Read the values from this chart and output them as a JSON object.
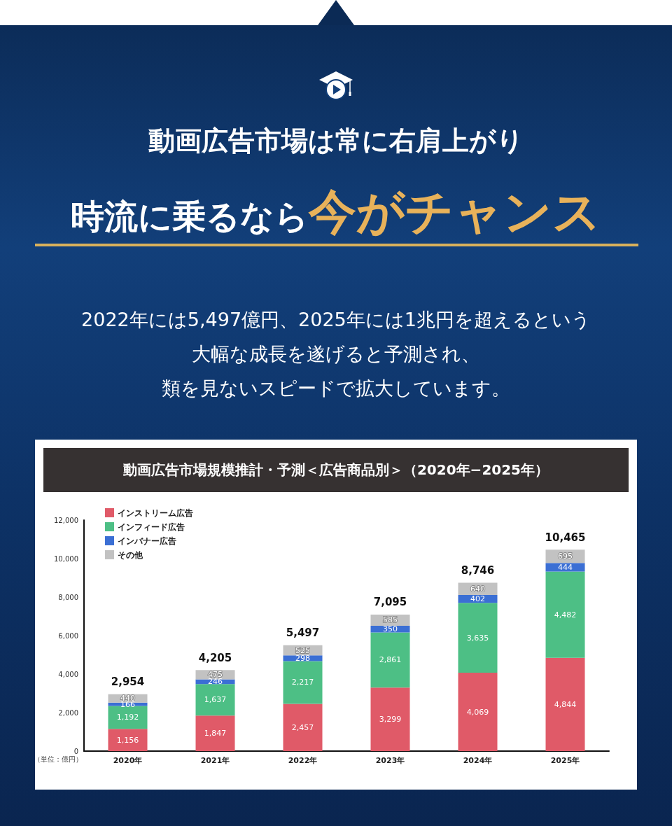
{
  "chart_data": {
    "type": "bar",
    "stacked": true,
    "title": "動画広告市場規模推計・予測＜広告商品別＞（2020年−2025年）",
    "annotations": [
      "動画広告市場は常に右肩上がり",
      "時流に乗るなら",
      "今がチャンス",
      "2022年には5,497億円、2025年には1兆円を超えるという",
      "大幅な成長を遂げると予測され、",
      "類を見ないスピードで拡大しています。"
    ],
    "ylabel": "（単位：億円）",
    "categories": [
      "2020年",
      "2021年",
      "2022年",
      "2023年",
      "2024年",
      "2025年"
    ],
    "series": [
      {
        "name": "インストリーム広告",
        "color": "#e05a68",
        "values": [
          1156,
          1847,
          2457,
          3299,
          4069,
          4844
        ],
        "value_labels": [
          "1,156",
          "1,847",
          "2,457",
          "3,299",
          "4,069",
          "4,844"
        ]
      },
      {
        "name": "インフィード広告",
        "color": "#4dbf85",
        "values": [
          1192,
          1637,
          2217,
          2861,
          3635,
          4482
        ],
        "value_labels": [
          "1,192",
          "1,637",
          "2,217",
          "2,861",
          "3,635",
          "4,482"
        ]
      },
      {
        "name": "インバナー広告",
        "color": "#3b6fd4",
        "values": [
          166,
          246,
          298,
          350,
          402,
          444
        ],
        "value_labels": [
          "166",
          "246",
          "298",
          "350",
          "402",
          "444"
        ]
      },
      {
        "name": "その他",
        "color": "#c2c2c2",
        "values": [
          440,
          475,
          525,
          585,
          640,
          695
        ],
        "value_labels": [
          "440",
          "475",
          "525",
          "585",
          "640",
          "695"
        ]
      }
    ],
    "totals": [
      "2,954",
      "4,205",
      "5,497",
      "7,095",
      "8,746",
      "10,465"
    ],
    "legend": "top left",
    "grid": false,
    "ylim": [
      0,
      12000
    ],
    "yticks": [
      0,
      {
        "value": 2000,
        "label": "2,000"
      },
      {
        "value": 4000,
        "label": "4,000"
      },
      {
        "value": 6000,
        "label": "6,000"
      },
      {
        "value": 8000,
        "label": "8,000"
      },
      {
        "value": 10000,
        "label": "10,000"
      },
      {
        "value": 12000,
        "label": "12,000"
      }
    ]
  }
}
